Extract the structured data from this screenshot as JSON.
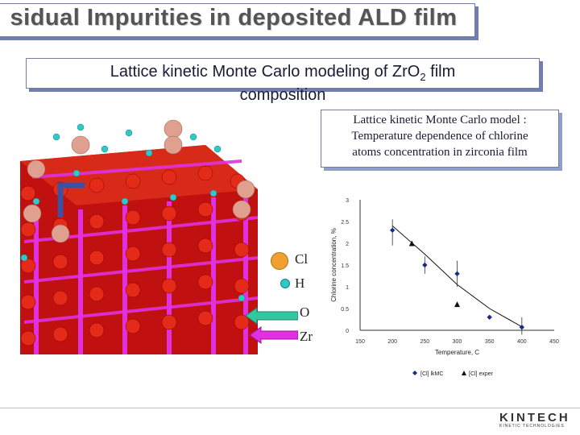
{
  "header": {
    "title": "sidual Impurities in deposited ALD film"
  },
  "subtitle": {
    "line1_prefix": "Lattice kinetic Monte Carlo modeling of Zr",
    "line1_o": "O",
    "line1_sub": "2",
    "line1_suffix": " film",
    "line2": "composition"
  },
  "model_box": {
    "line1": "Lattice kinetic Monte Carlo model :",
    "line2": "Temperature dependence of chlorine",
    "line3": "atoms concentration in zirconia film"
  },
  "atom_legend": {
    "cl": "Cl",
    "h": "H",
    "o": "O",
    "zr": "Zr"
  },
  "colors": {
    "oxygen": "#d41a10",
    "zirconium": "#e030e0",
    "chlorine": "#e0a090",
    "hydrogen": "#30c8c8",
    "accent": "#6f7fb5"
  },
  "chart_data": {
    "type": "scatter",
    "xlabel": "Temperature, C",
    "ylabel": "Chlorine concentration, %",
    "xlim": [
      150,
      450
    ],
    "ylim": [
      0,
      3
    ],
    "x_ticks": [
      "150",
      "200",
      "250",
      "300",
      "350",
      "400",
      "450"
    ],
    "y_ticks": [
      "0",
      "0.5",
      "1",
      "1.5",
      "2",
      "2.5",
      "3"
    ],
    "series": [
      {
        "name": "[Cl] lkMC",
        "marker": "diamond",
        "x": [
          200,
          250,
          300,
          350,
          400
        ],
        "y": [
          2.3,
          1.5,
          1.3,
          0.3,
          0.07
        ]
      },
      {
        "name": "[Cl] exper",
        "marker": "triangle",
        "x": [
          230,
          300
        ],
        "y": [
          2.0,
          0.6
        ]
      }
    ],
    "fit_curve": {
      "x": [
        200,
        250,
        300,
        350,
        400
      ],
      "y": [
        2.4,
        1.75,
        1.05,
        0.5,
        0.08
      ]
    },
    "legend_position": "bottom"
  },
  "logo": {
    "name": "KINTECH",
    "tagline": "KINETIC TECHNOLOGIES"
  }
}
